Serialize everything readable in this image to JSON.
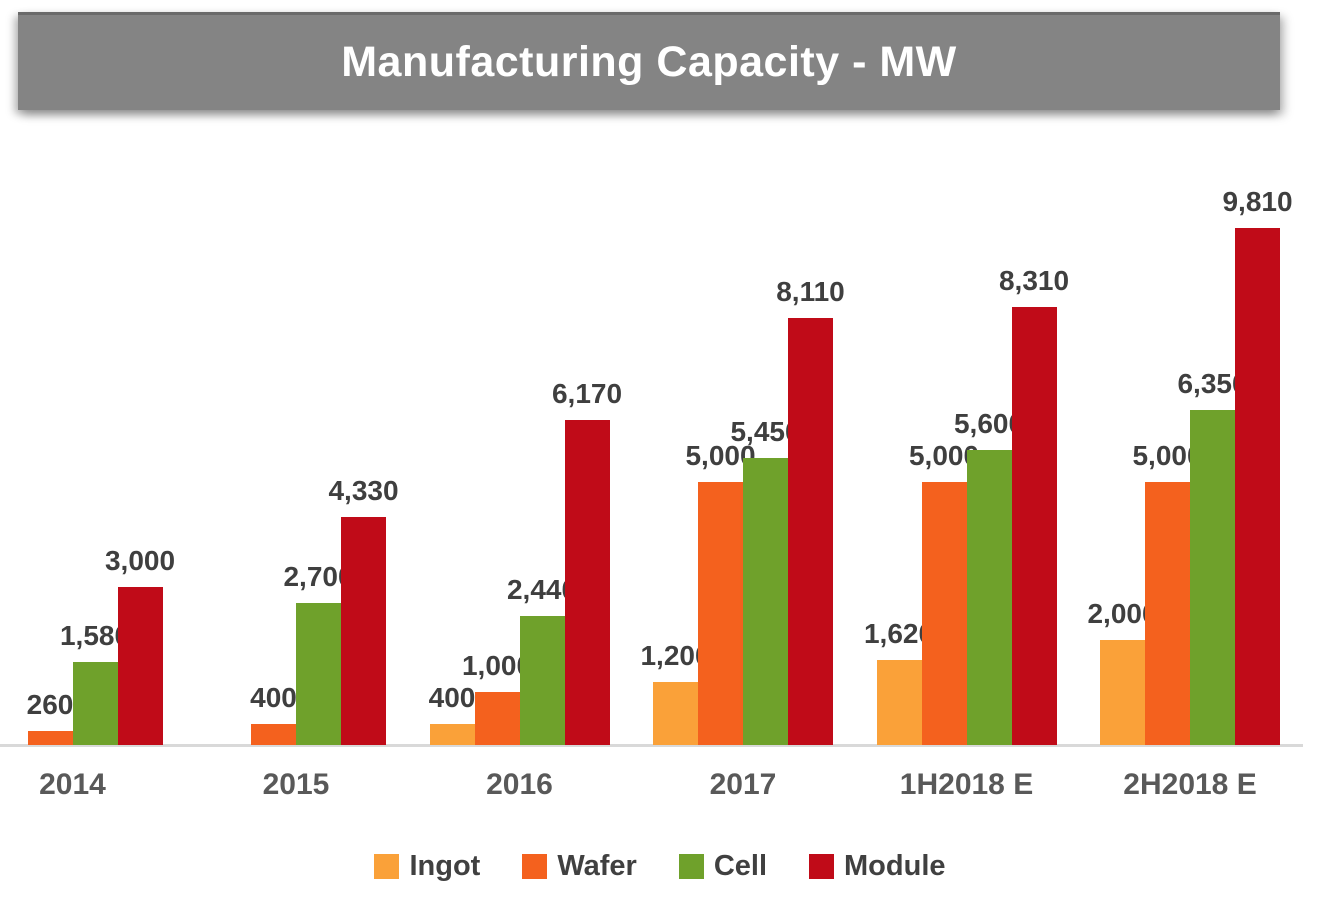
{
  "chart_data": {
    "type": "bar",
    "title": "Manufacturing Capacity - MW",
    "unit": "MW",
    "categories": [
      "2014",
      "2015",
      "2016",
      "2017",
      "1H2018 E",
      "2H2018 E"
    ],
    "series": [
      {
        "name": "Ingot",
        "color": "#FAA139",
        "values": [
          null,
          null,
          400,
          1200,
          1620,
          2000
        ]
      },
      {
        "name": "Wafer",
        "color": "#F4611E",
        "values": [
          260,
          400,
          1000,
          5000,
          5000,
          5000
        ]
      },
      {
        "name": "Cell",
        "color": "#6FA12B",
        "values": [
          1580,
          2700,
          2440,
          5450,
          5600,
          6350
        ]
      },
      {
        "name": "Module",
        "color": "#C00B18",
        "values": [
          3000,
          4330,
          6170,
          8110,
          8310,
          9810
        ]
      }
    ],
    "data_labels": [
      [
        "260",
        "1,580",
        "3,000"
      ],
      [
        "400",
        "2,700",
        "4,330"
      ],
      [
        "400",
        "1,000",
        "2,440",
        "6,170"
      ],
      [
        "1,200",
        "5,000",
        "5,450",
        "8,110"
      ],
      [
        "1,620",
        "5,000",
        "5,600",
        "8,310"
      ],
      [
        "2,000",
        "5,000",
        "6,350",
        "9,810"
      ]
    ],
    "ylim": [
      0,
      10000
    ],
    "gridlines": false,
    "y_axis_visible": false,
    "legend_position": "bottom",
    "legend_entries": [
      "Ingot",
      "Wafer",
      "Cell",
      "Module"
    ]
  },
  "style_colors": {
    "title_background": "#848484",
    "title_text": "#ffffff",
    "axis_line": "#D9D9D9",
    "data_label_text": "#3F3F3F",
    "category_label_text": "#595959",
    "legend_text": "#404040"
  }
}
